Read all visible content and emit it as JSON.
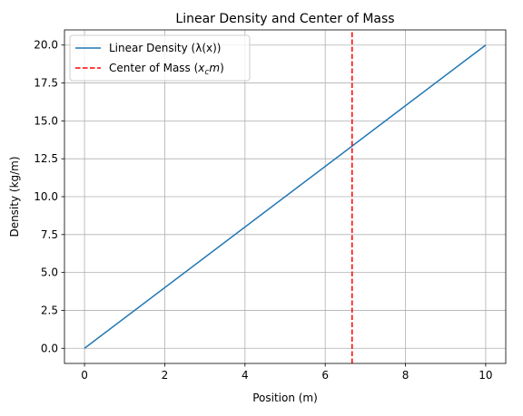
{
  "chart_data": {
    "type": "line",
    "title": "Linear Density and Center of Mass",
    "xlabel": "Position (m)",
    "ylabel": "Density (kg/m)",
    "xlim": [
      -0.5,
      10.5
    ],
    "ylim": [
      -1.0,
      21.0
    ],
    "xticks": [
      0,
      2,
      4,
      6,
      8,
      10
    ],
    "xtick_labels": [
      "0",
      "2",
      "4",
      "6",
      "8",
      "10"
    ],
    "yticks": [
      0,
      2.5,
      5,
      7.5,
      10,
      12.5,
      15,
      17.5,
      20
    ],
    "ytick_labels": [
      "0.0",
      "2.5",
      "5.0",
      "7.5",
      "10.0",
      "12.5",
      "15.0",
      "17.5",
      "20.0"
    ],
    "grid": true,
    "legend_position": "top-left",
    "series": [
      {
        "name": "Linear Density (λ(x))",
        "style": "solid",
        "color": "#1f77b4",
        "x": [
          0,
          10
        ],
        "y": [
          0,
          20
        ]
      },
      {
        "name": "Center of Mass (x_c m)",
        "style": "dashed-vertical",
        "color": "#ff0000",
        "x": [
          6.67,
          6.67
        ],
        "y": [
          -1.0,
          21.0
        ]
      }
    ],
    "legend": {
      "entries": [
        {
          "label": "Linear Density (λ(x))"
        },
        {
          "label_main": "Center of Mass (",
          "label_var": "x",
          "label_sub": "c",
          "label_var2": "m",
          "label_end": ")"
        }
      ]
    }
  }
}
